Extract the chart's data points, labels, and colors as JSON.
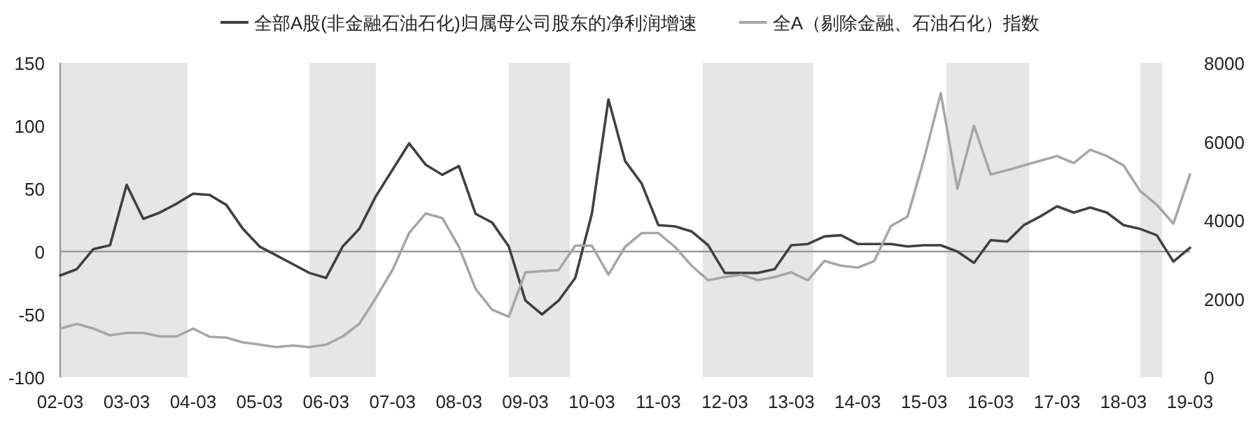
{
  "chart_data": {
    "type": "line",
    "x": [
      "2002-03",
      "2002-06",
      "2002-09",
      "2002-12",
      "2003-03",
      "2003-06",
      "2003-09",
      "2003-12",
      "2004-03",
      "2004-06",
      "2004-09",
      "2004-12",
      "2005-03",
      "2005-06",
      "2005-09",
      "2005-12",
      "2006-03",
      "2006-06",
      "2006-09",
      "2006-12",
      "2007-03",
      "2007-06",
      "2007-09",
      "2007-12",
      "2008-03",
      "2008-06",
      "2008-09",
      "2008-12",
      "2009-03",
      "2009-06",
      "2009-09",
      "2009-12",
      "2010-03",
      "2010-06",
      "2010-09",
      "2010-12",
      "2011-03",
      "2011-06",
      "2011-09",
      "2011-12",
      "2012-03",
      "2012-06",
      "2012-09",
      "2012-12",
      "2013-03",
      "2013-06",
      "2013-09",
      "2013-12",
      "2014-03",
      "2014-06",
      "2014-09",
      "2014-12",
      "2015-03",
      "2015-06",
      "2015-09",
      "2015-12",
      "2016-03",
      "2016-06",
      "2016-09",
      "2016-12",
      "2017-03",
      "2017-06",
      "2017-09",
      "2017-12",
      "2018-03",
      "2018-06",
      "2018-09",
      "2018-12",
      "2019-03"
    ],
    "series": [
      {
        "name": "全部A股(非金融石油石化)归属母公司股东的净利润增速",
        "color": "#404040",
        "values": [
          -19,
          -14,
          2,
          5,
          53,
          26,
          31,
          38,
          46,
          45,
          37,
          18,
          4,
          -3,
          -10,
          -17,
          -21,
          4,
          18,
          44,
          65,
          86,
          69,
          61,
          68,
          30,
          23,
          4,
          -39,
          -50,
          -39,
          -21,
          30,
          121,
          72,
          54,
          21,
          20,
          16,
          5,
          -17,
          -17,
          -17,
          -14,
          5,
          6,
          12,
          13,
          6,
          6,
          6,
          4,
          5,
          5,
          0,
          -9,
          9,
          8,
          21,
          28,
          36,
          31,
          35,
          31,
          21,
          18,
          13,
          -8,
          3
        ]
      },
      {
        "name": "全A（剔除金融、石油石化）指数",
        "color": "#a6a6a6",
        "axis": "y2",
        "values": [
          1240,
          1360,
          1240,
          1070,
          1130,
          1130,
          1040,
          1040,
          1240,
          1030,
          1010,
          890,
          830,
          770,
          810,
          770,
          830,
          1040,
          1360,
          2020,
          2730,
          3670,
          4170,
          4050,
          3320,
          2250,
          1720,
          1540,
          2670,
          2700,
          2730,
          3350,
          3350,
          2610,
          3320,
          3670,
          3670,
          3320,
          2840,
          2470,
          2550,
          2610,
          2470,
          2550,
          2670,
          2470,
          2960,
          2840,
          2790,
          2960,
          3850,
          4090,
          5570,
          7230,
          4800,
          6400,
          5160,
          5270,
          5390,
          5510,
          5630,
          5450,
          5790,
          5630,
          5390,
          4740,
          4390,
          3910,
          5160
        ]
      }
    ],
    "xlim": [
      "2002-03",
      "2019-03"
    ],
    "xticks": [
      {
        "value": "2002-03",
        "label": "02-03"
      },
      {
        "value": "2003-03",
        "label": "03-03"
      },
      {
        "value": "2004-03",
        "label": "04-03"
      },
      {
        "value": "2005-03",
        "label": "05-03"
      },
      {
        "value": "2006-03",
        "label": "06-03"
      },
      {
        "value": "2007-03",
        "label": "07-03"
      },
      {
        "value": "2008-03",
        "label": "08-03"
      },
      {
        "value": "2009-03",
        "label": "09-03"
      },
      {
        "value": "2010-03",
        "label": "10-03"
      },
      {
        "value": "2011-03",
        "label": "11-03"
      },
      {
        "value": "2012-03",
        "label": "12-03"
      },
      {
        "value": "2013-03",
        "label": "13-03"
      },
      {
        "value": "2014-03",
        "label": "14-03"
      },
      {
        "value": "2015-03",
        "label": "15-03"
      },
      {
        "value": "2016-03",
        "label": "16-03"
      },
      {
        "value": "2017-03",
        "label": "17-03"
      },
      {
        "value": "2018-03",
        "label": "18-03"
      },
      {
        "value": "2019-03",
        "label": "19-03"
      }
    ],
    "ylim": [
      -100,
      150
    ],
    "yticks": [
      -100,
      -50,
      0,
      50,
      100,
      150
    ],
    "y2lim": [
      0,
      8000
    ],
    "y2ticks": [
      0,
      2000,
      4000,
      6000,
      8000
    ],
    "bands": [
      {
        "axis": "x",
        "from": "2002-03",
        "to": "2004-02",
        "color": "#e6e6e6"
      },
      {
        "axis": "x",
        "from": "2005-12",
        "to": "2006-12",
        "color": "#e6e6e6"
      },
      {
        "axis": "x",
        "from": "2008-12",
        "to": "2009-11",
        "color": "#e6e6e6"
      },
      {
        "axis": "x",
        "from": "2011-11",
        "to": "2013-07",
        "color": "#e6e6e6"
      },
      {
        "axis": "x",
        "from": "2015-07",
        "to": "2016-10",
        "color": "#e6e6e6"
      },
      {
        "axis": "x",
        "from": "2018-06",
        "to": "2018-10",
        "color": "#e6e6e6"
      }
    ],
    "ref_lines": [
      {
        "axis": "y",
        "value": 0,
        "color": "#999999"
      }
    ],
    "grid": false,
    "legend": "top",
    "marker": "none",
    "line_style": "solid"
  }
}
